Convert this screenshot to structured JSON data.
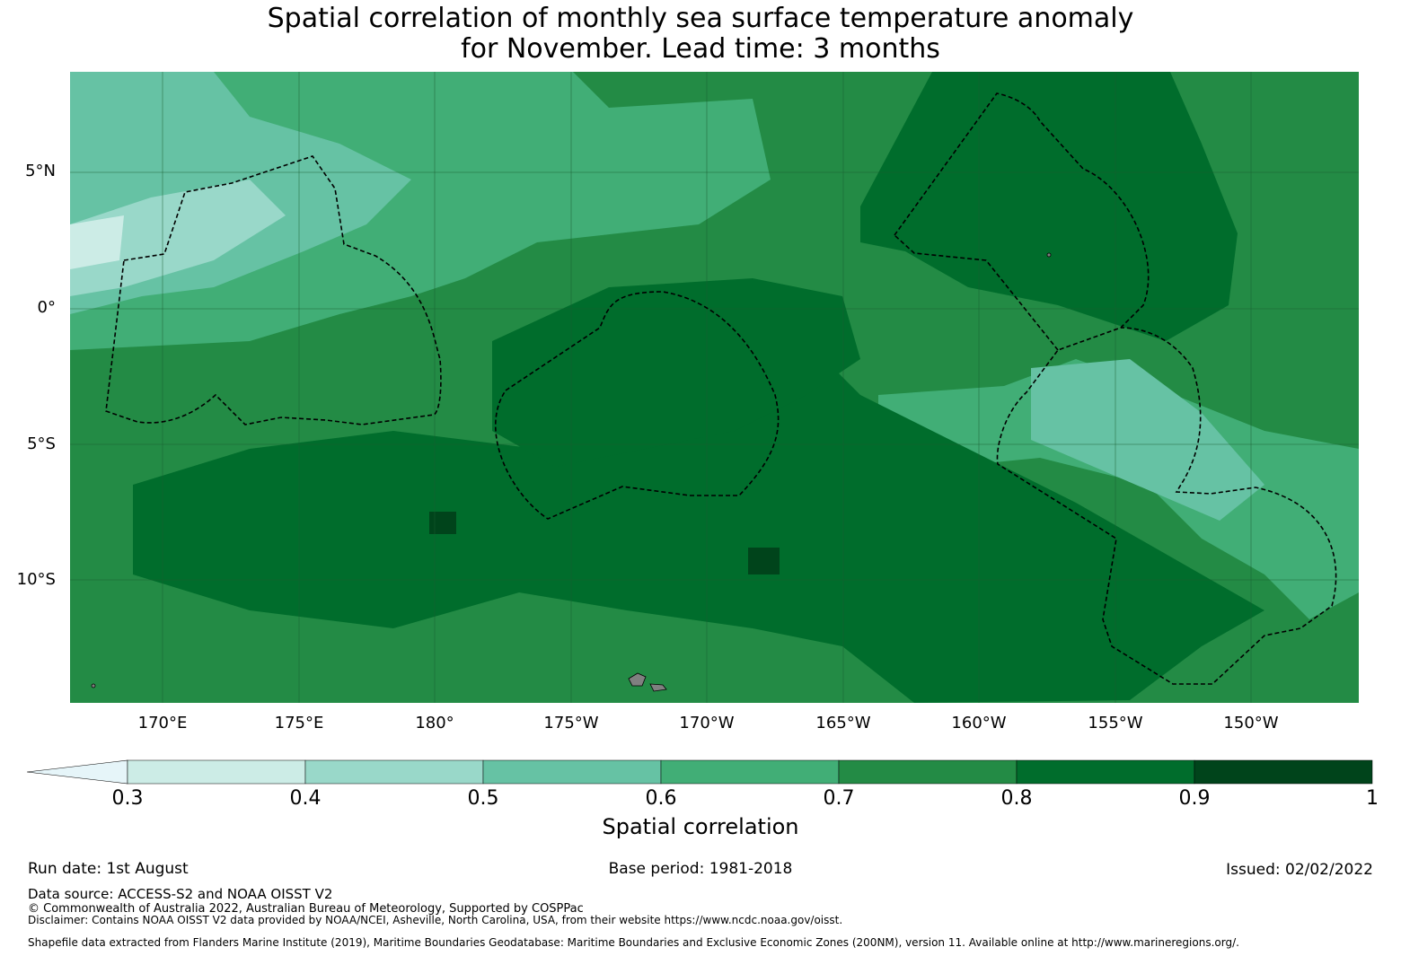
{
  "title": {
    "line1": "Spatial correlation of monthly sea surface temperature anomaly",
    "line2": "for November. Lead time: 3 months"
  },
  "map": {
    "lat_labels": [
      "5°N",
      "0°",
      "5°S",
      "10°S"
    ],
    "lon_labels": [
      "170°E",
      "175°E",
      "180°",
      "175°W",
      "170°W",
      "165°W",
      "160°W",
      "155°W",
      "150°W"
    ]
  },
  "colorbar": {
    "label": "Spatial correlation",
    "ticks": [
      "0.3",
      "0.4",
      "0.5",
      "0.6",
      "0.7",
      "0.8",
      "0.9",
      "1"
    ],
    "colors": [
      "#e6f5f9",
      "#ccece6",
      "#99d8c9",
      "#66c2a4",
      "#41ae76",
      "#238b45",
      "#006d2c",
      "#00441b"
    ]
  },
  "footer": {
    "run_date": "Run date: 1st August",
    "base_period": "Base period: 1981-2018",
    "issued": "Issued: 02/02/2022",
    "data_source": "Data source: ACCESS-S2 and NOAA OISST V2",
    "copyright": "© Commonwealth of Australia 2022, Australian Bureau of Meteorology, Supported by COSPPac",
    "disclaimer": "Disclaimer: Contains NOAA OISST V2 data provided by NOAA/NCEI, Asheville, North Carolina, USA, from their website https://www.ncdc.noaa.gov/oisst.",
    "shapefile": "Shapefile data extracted from Flanders Marine Institute (2019), Maritime Boundaries Geodatabase: Maritime Boundaries and Exclusive Economic Zones (200NM), version 11. Available online at http://www.marineregions.org/."
  }
}
